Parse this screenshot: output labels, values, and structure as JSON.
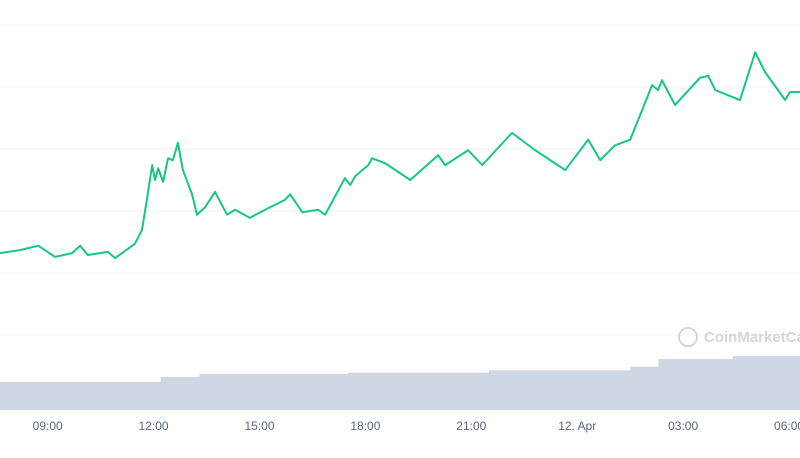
{
  "chart_data": {
    "type": "line",
    "watermark": "CoinMarketCap",
    "xlim": [
      7.65,
      30.31
    ],
    "xticks": [
      {
        "value": 9,
        "label": "09:00"
      },
      {
        "value": 12,
        "label": "12:00"
      },
      {
        "value": 15,
        "label": "15:00"
      },
      {
        "value": 18,
        "label": "18:00"
      },
      {
        "value": 21,
        "label": "21:00"
      },
      {
        "value": 24,
        "label": "12. Apr"
      },
      {
        "value": 27,
        "label": "03:00"
      },
      {
        "value": 30,
        "label": "06:00"
      }
    ],
    "ylim": [
      0,
      5
    ],
    "yticks": [
      0,
      1,
      2,
      3,
      4,
      5
    ],
    "grid": true,
    "y2lim": [
      0,
      1
    ],
    "series": [
      {
        "type": "line",
        "color": "#16c784",
        "x": [
          7.65,
          8.22,
          8.73,
          9.21,
          9.69,
          9.92,
          10.14,
          10.71,
          10.91,
          11.47,
          11.67,
          11.81,
          11.96,
          12.04,
          12.13,
          12.27,
          12.41,
          12.55,
          12.69,
          12.83,
          13.09,
          13.23,
          13.46,
          13.74,
          14.08,
          14.31,
          14.73,
          15.16,
          15.72,
          15.87,
          16.21,
          16.66,
          16.86,
          17.42,
          17.57,
          17.71,
          18.08,
          18.19,
          18.56,
          19.27,
          20.06,
          20.26,
          20.91,
          21.31,
          22.15,
          22.81,
          23.66,
          24.31,
          24.65,
          25.07,
          25.5,
          26.01,
          26.12,
          26.29,
          26.4,
          26.77,
          27.48,
          27.71,
          27.91,
          28.61,
          29.04,
          29.32,
          29.89,
          30.03,
          30.31
        ],
        "values": [
          1.32,
          1.37,
          1.44,
          1.26,
          1.32,
          1.44,
          1.29,
          1.34,
          1.24,
          1.47,
          1.69,
          2.18,
          2.74,
          2.5,
          2.69,
          2.47,
          2.85,
          2.82,
          3.1,
          2.66,
          2.27,
          1.94,
          2.06,
          2.31,
          1.94,
          2.02,
          1.89,
          2.02,
          2.18,
          2.27,
          1.98,
          2.02,
          1.94,
          2.53,
          2.42,
          2.56,
          2.74,
          2.85,
          2.77,
          2.5,
          2.9,
          2.74,
          2.98,
          2.74,
          3.26,
          2.98,
          2.66,
          3.15,
          2.82,
          3.06,
          3.15,
          3.87,
          4.03,
          3.95,
          4.11,
          3.71,
          4.15,
          4.18,
          3.95,
          3.79,
          4.56,
          4.24,
          3.79,
          3.92,
          3.92
        ]
      },
      {
        "type": "area",
        "axis": "y2",
        "color": "#cfd6e4",
        "x": [
          7.65,
          11.5,
          12.2,
          13.3,
          17.5,
          21.5,
          25.5,
          26.3,
          28.4,
          30.31
        ],
        "values": [
          0.47,
          0.47,
          0.55,
          0.6,
          0.62,
          0.66,
          0.72,
          0.85,
          0.9,
          0.95
        ]
      }
    ]
  }
}
